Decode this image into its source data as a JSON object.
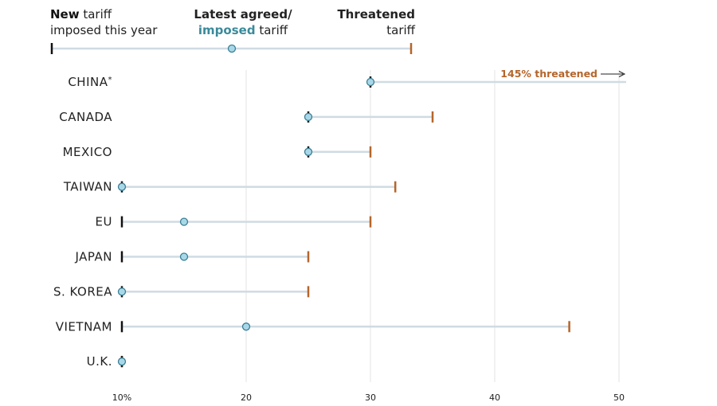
{
  "legend": {
    "new_bold": "New",
    "new_rest1": " tariff",
    "new_line2": "imposed this year",
    "latest_line1": "Latest agreed/",
    "latest_line2_colored": "imposed",
    "latest_line2_rest": " tariff",
    "threat_line1": "Threatened",
    "threat_line2": "tariff"
  },
  "colors": {
    "new": "#111111",
    "latest_fill": "#a8d8e8",
    "latest_stroke": "#3a7f95",
    "latest_text": "#3a8a9a",
    "threatened": "#b5652a",
    "range_line": "#cfdbe3",
    "grid": "#e3e3e3"
  },
  "chart_data": {
    "type": "dot-range",
    "title": "",
    "xlabel": "",
    "ylabel": "",
    "xlim": [
      10,
      50
    ],
    "xticks": [
      10,
      20,
      30,
      40,
      50
    ],
    "xtick_labels": [
      "10%",
      "20",
      "30",
      "40",
      "50"
    ],
    "grid": true,
    "annotation": {
      "text": "145% threatened",
      "country": "CHINA*",
      "value": 145
    },
    "categories": [
      "CHINA*",
      "CANADA",
      "MEXICO",
      "TAIWAN",
      "EU",
      "JAPAN",
      "S. KOREA",
      "VIETNAM",
      "U.K."
    ],
    "series": [
      {
        "name": "New tariff imposed this year",
        "values": [
          30,
          25,
          25,
          10,
          10,
          10,
          10,
          10,
          10
        ]
      },
      {
        "name": "Latest agreed/imposed tariff",
        "values": [
          30,
          25,
          25,
          10,
          15,
          15,
          10,
          20,
          10
        ]
      },
      {
        "name": "Threatened tariff",
        "values": [
          145,
          35,
          30,
          32,
          30,
          25,
          25,
          46,
          10
        ]
      }
    ]
  }
}
